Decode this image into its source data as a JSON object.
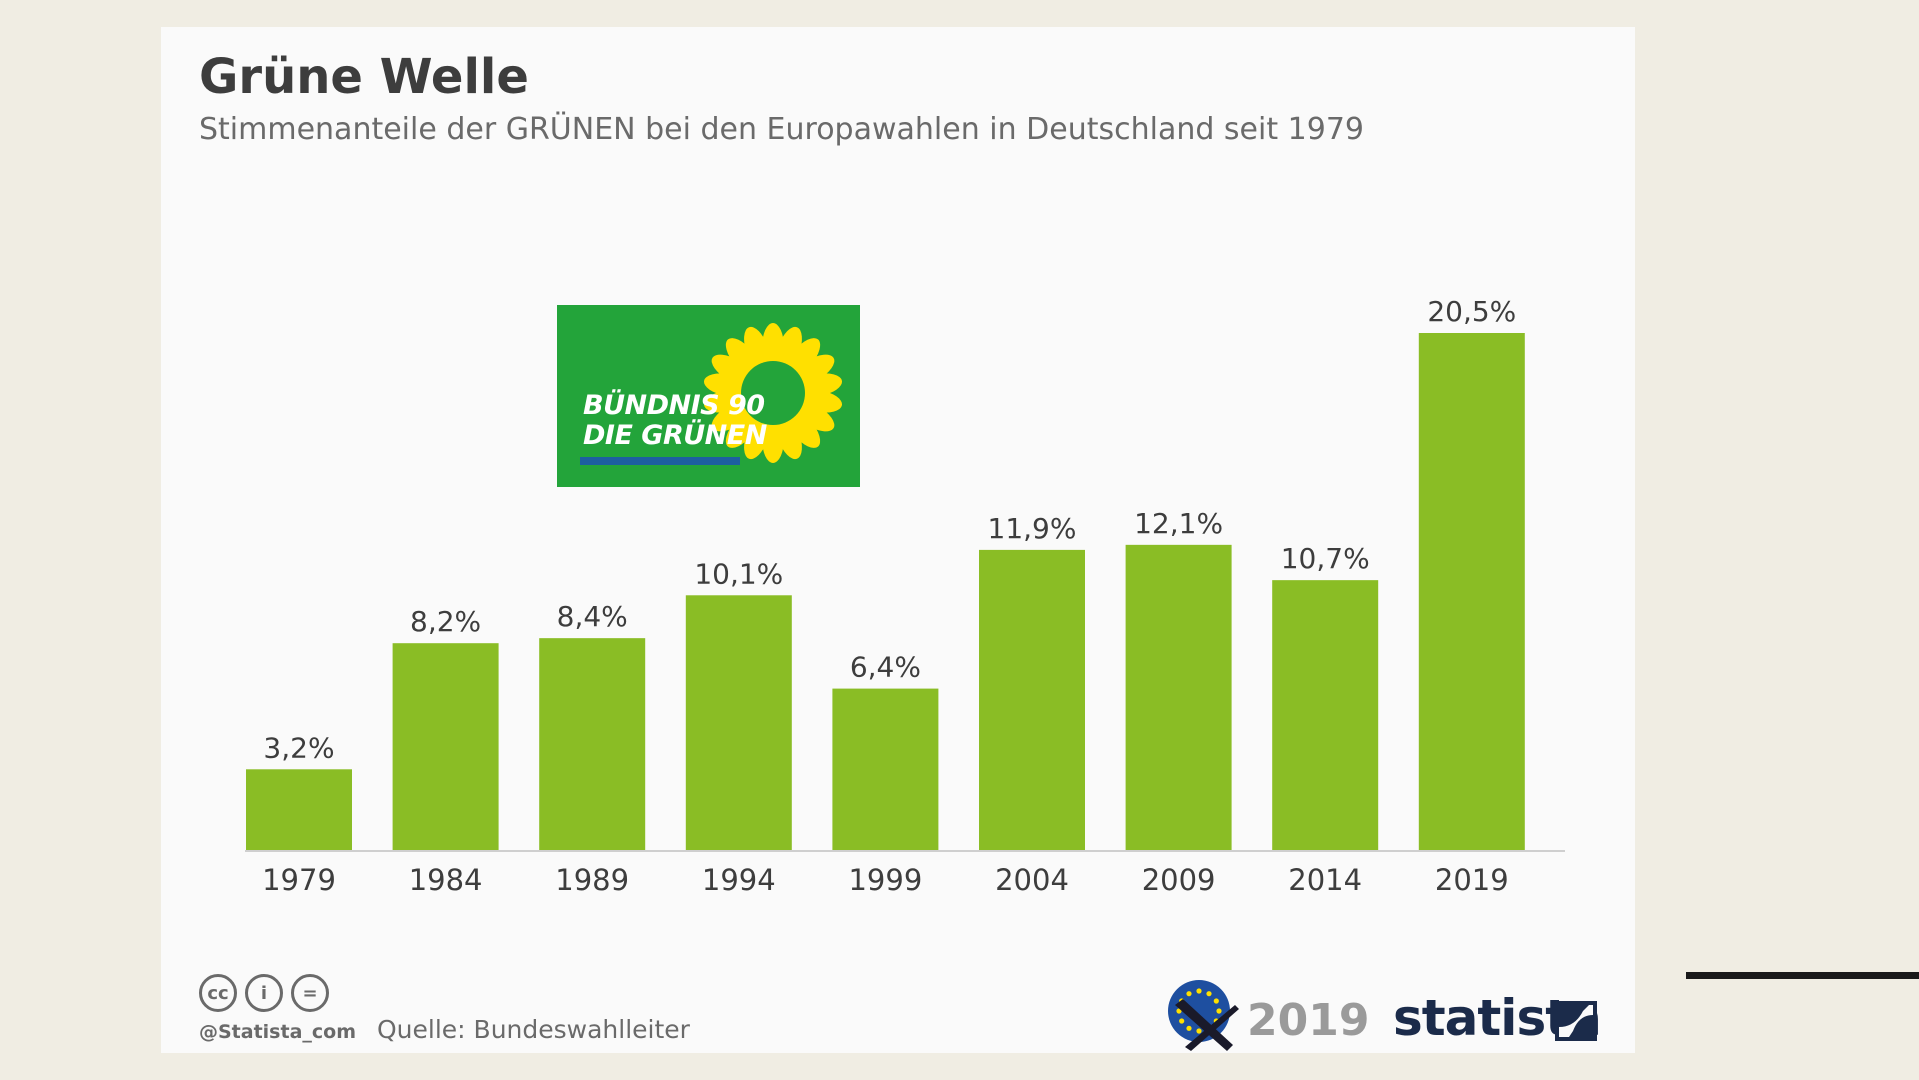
{
  "header": {
    "title": "Grüne Welle",
    "subtitle": "Stimmenanteile der GRÜNEN bei den Europawahlen in Deutschland seit 1979"
  },
  "logo": {
    "line1": "BÜNDNIS 90",
    "line2": "DIE GRÜNEN",
    "background_color": "#23a43a",
    "accent_color": "#ffe000"
  },
  "chart_data": {
    "type": "bar",
    "categories": [
      "1979",
      "1984",
      "1989",
      "1994",
      "1999",
      "2004",
      "2009",
      "2014",
      "2019"
    ],
    "values": [
      3.2,
      8.2,
      8.4,
      10.1,
      6.4,
      11.9,
      12.1,
      10.7,
      20.5
    ],
    "value_labels": [
      "3,2%",
      "8,2%",
      "8,4%",
      "10,1%",
      "6,4%",
      "11,9%",
      "12,1%",
      "10,7%",
      "20,5%"
    ],
    "title": "Grüne Welle",
    "subtitle": "Stimmenanteile der GRÜNEN bei den Europawahlen in Deutschland seit 1979",
    "xlabel": "",
    "ylabel": "",
    "ylim": [
      0,
      20.5
    ],
    "grid": false,
    "bar_color": "#8abd25"
  },
  "footer": {
    "license_icons": [
      "cc-icon",
      "attribution-icon",
      "no-derivatives-icon"
    ],
    "license_marks": [
      "cc",
      "i",
      "="
    ],
    "handle": "@Statista_com",
    "source": "Quelle: Bundeswahlleiter",
    "eu_year": "2019",
    "brand": "statista"
  }
}
